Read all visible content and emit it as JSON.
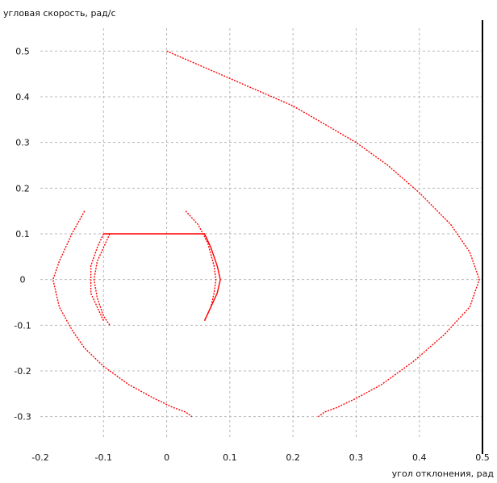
{
  "chart_data": {
    "type": "line",
    "title": "",
    "ylabel": "угловая скорость, рад/с",
    "xlabel": "угол отклонения, рад",
    "xlim": [
      -0.2,
      0.5
    ],
    "ylim": [
      -0.35,
      0.55
    ],
    "grid": true,
    "x_ticks": [
      {
        "value": -0.2,
        "label": "-0.2"
      },
      {
        "value": -0.1,
        "label": "-0.1"
      },
      {
        "value": 0,
        "label": "0"
      },
      {
        "value": 0.1,
        "label": "0.1"
      },
      {
        "value": 0.2,
        "label": "0.2"
      },
      {
        "value": 0.3,
        "label": "0.3"
      },
      {
        "value": 0.4,
        "label": "0.4"
      },
      {
        "value": 0.5,
        "label": "0.5"
      }
    ],
    "y_ticks": [
      {
        "value": 0.5,
        "label": "0.5"
      },
      {
        "value": 0.4,
        "label": "0.4"
      },
      {
        "value": 0.3,
        "label": "0.3"
      },
      {
        "value": 0.2,
        "label": "0.2"
      },
      {
        "value": 0.1,
        "label": "0.1"
      },
      {
        "value": 0,
        "label": "0"
      },
      {
        "value": -0.1,
        "label": "-0.1"
      },
      {
        "value": -0.2,
        "label": "-0.2"
      },
      {
        "value": -0.3,
        "label": "-0.3"
      }
    ],
    "series_color": "#ff0000",
    "series": [
      {
        "points": [
          [
            0.0,
            0.5
          ],
          [
            0.05,
            0.47
          ],
          [
            0.1,
            0.44
          ],
          [
            0.15,
            0.41
          ],
          [
            0.2,
            0.38
          ],
          [
            0.25,
            0.34
          ],
          [
            0.3,
            0.3
          ],
          [
            0.35,
            0.25
          ],
          [
            0.4,
            0.19
          ],
          [
            0.45,
            0.12
          ],
          [
            0.48,
            0.06
          ],
          [
            0.495,
            0.0
          ],
          [
            0.48,
            -0.06
          ],
          [
            0.44,
            -0.12
          ],
          [
            0.39,
            -0.18
          ],
          [
            0.34,
            -0.23
          ],
          [
            0.3,
            -0.26
          ],
          [
            0.27,
            -0.28
          ],
          [
            0.25,
            -0.29
          ],
          [
            0.24,
            -0.3
          ]
        ]
      },
      {
        "points": [
          [
            -0.13,
            0.15
          ],
          [
            -0.15,
            0.1
          ],
          [
            -0.17,
            0.04
          ],
          [
            -0.18,
            0.0
          ],
          [
            -0.17,
            -0.06
          ],
          [
            -0.15,
            -0.11
          ],
          [
            -0.13,
            -0.15
          ],
          [
            -0.1,
            -0.19
          ],
          [
            -0.06,
            -0.23
          ],
          [
            -0.02,
            -0.26
          ],
          [
            0.01,
            -0.28
          ],
          [
            0.03,
            -0.29
          ],
          [
            0.04,
            -0.3
          ]
        ]
      },
      {
        "points": [
          [
            -0.1,
            0.1
          ],
          [
            0.06,
            0.1
          ],
          [
            0.07,
            0.07
          ],
          [
            0.08,
            0.03
          ],
          [
            0.085,
            0.0
          ],
          [
            0.08,
            -0.03
          ],
          [
            0.07,
            -0.06
          ],
          [
            0.06,
            -0.09
          ]
        ]
      },
      {
        "points": [
          [
            -0.1,
            0.1
          ],
          [
            -0.11,
            0.07
          ],
          [
            -0.12,
            0.03
          ],
          [
            -0.12,
            0.0
          ],
          [
            -0.12,
            -0.03
          ],
          [
            -0.11,
            -0.06
          ],
          [
            -0.1,
            -0.09
          ]
        ]
      },
      {
        "points": [
          [
            0.03,
            0.15
          ],
          [
            0.05,
            0.12
          ],
          [
            0.065,
            0.08
          ],
          [
            0.075,
            0.03
          ],
          [
            0.078,
            0.0
          ],
          [
            0.075,
            -0.03
          ],
          [
            0.07,
            -0.06
          ],
          [
            0.06,
            -0.09
          ]
        ]
      },
      {
        "points": [
          [
            -0.09,
            0.1
          ],
          [
            -0.1,
            0.07
          ],
          [
            -0.11,
            0.04
          ],
          [
            -0.115,
            0.0
          ],
          [
            -0.11,
            -0.04
          ],
          [
            -0.1,
            -0.08
          ],
          [
            -0.09,
            -0.1
          ]
        ]
      }
    ]
  }
}
